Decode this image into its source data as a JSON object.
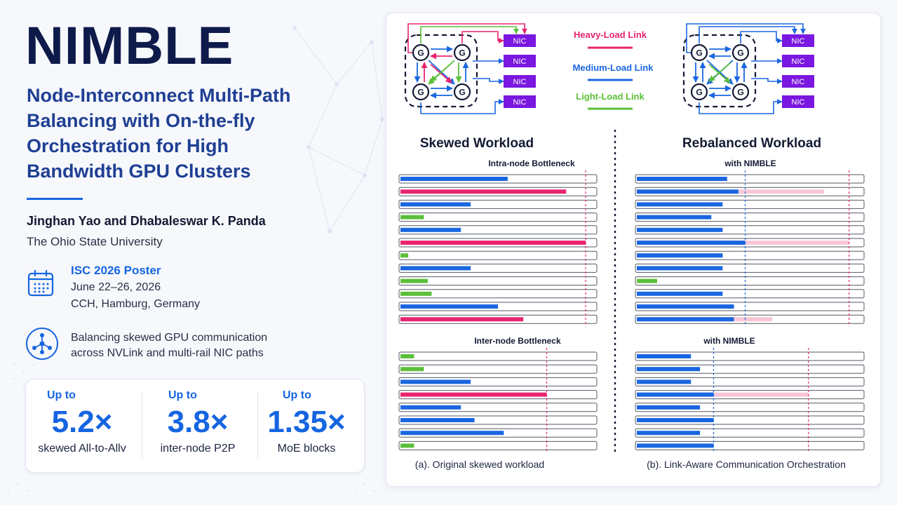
{
  "poster": {
    "title": "NIMBLE",
    "subtitle": "Node-Interconnect Multi-Path Balancing with On-the-fly Orchestration for High Bandwidth GPU Clusters",
    "authors": "Jinghan Yao and Dhabaleswar K. Panda",
    "affiliation": "The Ohio State University"
  },
  "event": {
    "title": "ISC 2026 Poster",
    "date": "June 22–26, 2026",
    "location": "CCH, Hamburg, Germany",
    "icon": "calendar-icon"
  },
  "description": {
    "text": "Balancing skewed GPU communication across NVLink and multi-rail NIC paths",
    "icon": "network-icon"
  },
  "stats": [
    {
      "prefix": "Up to",
      "value": "5.2×",
      "label": "skewed All-to-Allv"
    },
    {
      "prefix": "Up to",
      "value": "3.8×",
      "label": "inter-node P2P"
    },
    {
      "prefix": "Up to",
      "value": "1.35×",
      "label": "MoE blocks"
    }
  ],
  "colors": {
    "heavy": "#e8246f",
    "medium": "#1a66e0",
    "light": "#5cbf3a",
    "light_pink": "#f7c7d7",
    "nic": "#7a17e0",
    "accent": "#1565e0"
  },
  "figure": {
    "gpu_label": "G",
    "nic_label": "NIC",
    "legend": [
      {
        "label": "Heavy-Load Link",
        "color": "#e8246f"
      },
      {
        "label": "Medium-Load Link",
        "color": "#1a66e0"
      },
      {
        "label": "Light-Load Link",
        "color": "#5cbf3a"
      }
    ],
    "left_title": "Skewed Workload",
    "right_title": "Rebalanced Workload",
    "intra_label": "Intra-node Bottleneck",
    "inter_label": "Inter-node Bottleneck",
    "nimble_label": "with NIMBLE",
    "caption_a": "(a). Original skewed workload",
    "caption_b": "(b). Link-Aware Communication Orchestration"
  },
  "chart_data": [
    {
      "type": "bar",
      "name": "intra-node skewed",
      "xlim": [
        0,
        1
      ],
      "bottleneck": 0.95,
      "rows": [
        {
          "value": 0.55,
          "load": "medium"
        },
        {
          "value": 0.85,
          "load": "heavy"
        },
        {
          "value": 0.36,
          "load": "medium"
        },
        {
          "value": 0.12,
          "load": "light"
        },
        {
          "value": 0.31,
          "load": "medium"
        },
        {
          "value": 0.95,
          "load": "heavy"
        },
        {
          "value": 0.04,
          "load": "light"
        },
        {
          "value": 0.36,
          "load": "medium"
        },
        {
          "value": 0.14,
          "load": "light"
        },
        {
          "value": 0.16,
          "load": "light"
        },
        {
          "value": 0.5,
          "load": "medium"
        },
        {
          "value": 0.63,
          "load": "heavy"
        }
      ]
    },
    {
      "type": "bar",
      "name": "intra-node rebalanced",
      "xlim": [
        0,
        1
      ],
      "balanced_line": 0.48,
      "original_line": 0.94,
      "rows": [
        {
          "value": 0.4,
          "ghost": 0
        },
        {
          "value": 0.45,
          "ghost": 0.83
        },
        {
          "value": 0.38,
          "ghost": 0
        },
        {
          "value": 0.33,
          "ghost": 0
        },
        {
          "value": 0.38,
          "ghost": 0
        },
        {
          "value": 0.48,
          "ghost": 0.94
        },
        {
          "value": 0.38,
          "ghost": 0
        },
        {
          "value": 0.38,
          "ghost": 0
        },
        {
          "value": 0.09,
          "ghost": 0,
          "load": "light"
        },
        {
          "value": 0.38,
          "ghost": 0
        },
        {
          "value": 0.43,
          "ghost": 0
        },
        {
          "value": 0.43,
          "ghost": 0.6
        }
      ]
    },
    {
      "type": "bar",
      "name": "inter-node skewed",
      "xlim": [
        0,
        1
      ],
      "bottleneck": 0.75,
      "rows": [
        {
          "value": 0.07,
          "load": "light"
        },
        {
          "value": 0.12,
          "load": "light"
        },
        {
          "value": 0.36,
          "load": "medium"
        },
        {
          "value": 0.75,
          "load": "heavy"
        },
        {
          "value": 0.31,
          "load": "medium"
        },
        {
          "value": 0.38,
          "load": "medium"
        },
        {
          "value": 0.53,
          "load": "medium"
        },
        {
          "value": 0.07,
          "load": "light"
        }
      ]
    },
    {
      "type": "bar",
      "name": "inter-node rebalanced",
      "xlim": [
        0,
        1
      ],
      "balanced_line": 0.34,
      "original_line": 0.76,
      "rows": [
        {
          "value": 0.24,
          "ghost": 0
        },
        {
          "value": 0.28,
          "ghost": 0
        },
        {
          "value": 0.24,
          "ghost": 0
        },
        {
          "value": 0.34,
          "ghost": 0.76
        },
        {
          "value": 0.28,
          "ghost": 0
        },
        {
          "value": 0.34,
          "ghost": 0
        },
        {
          "value": 0.28,
          "ghost": 0
        },
        {
          "value": 0.34,
          "ghost": 0
        }
      ]
    }
  ]
}
